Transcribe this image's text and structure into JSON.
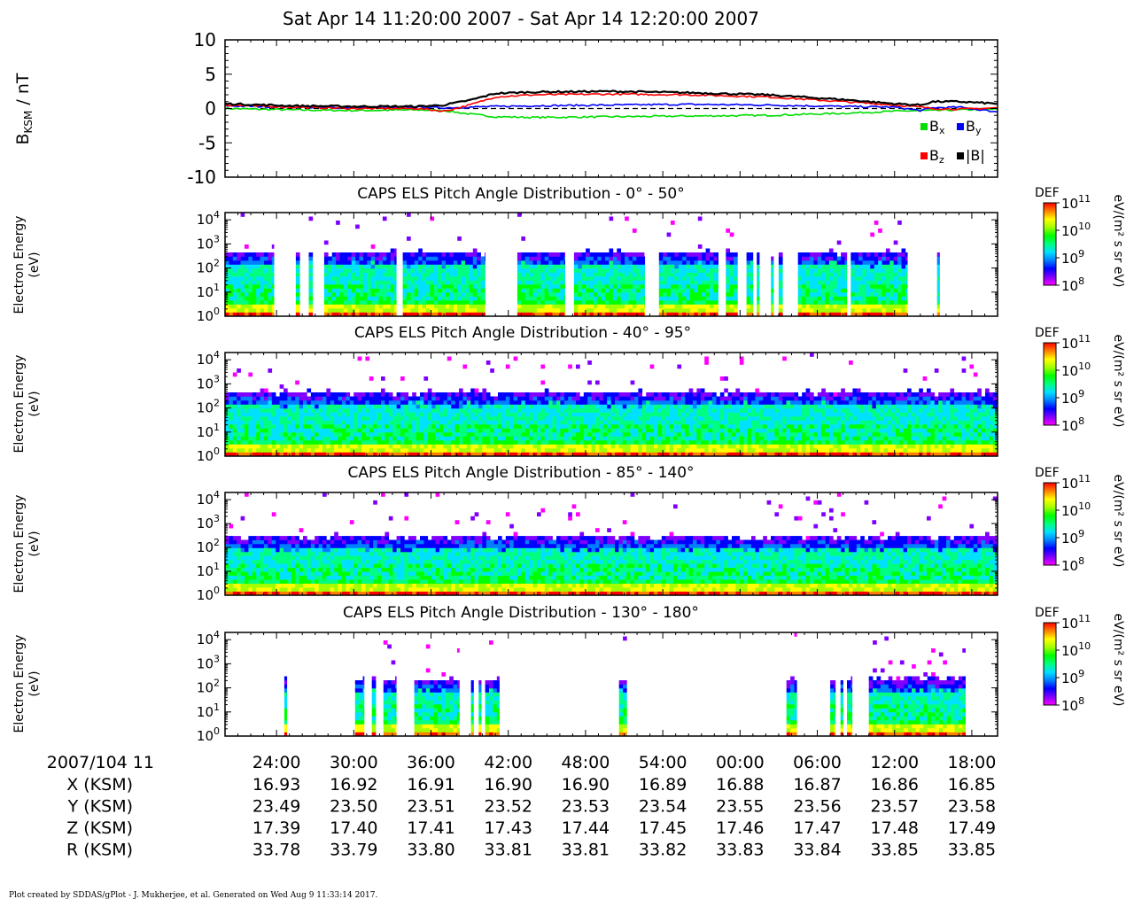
{
  "header": {
    "title": "Sat Apr 14 11:20:00 2007 - Sat Apr 14 12:20:00 2007"
  },
  "footer": {
    "text": "Plot created by SDDAS/gPlot - J. Mukherjee, et al.  Generated on Wed Aug 9 11:33:14 2017."
  },
  "colors": {
    "bx": "#00dd00",
    "by": "#0000ff",
    "bz": "#ff0000",
    "bmag": "#000000",
    "colorbar": [
      "#ff00ff",
      "#8000ff",
      "#0000ff",
      "#0080ff",
      "#00e0ff",
      "#00ff80",
      "#00ff00",
      "#a0ff00",
      "#ffff00",
      "#ff8000",
      "#ff0000"
    ]
  },
  "time_axis": {
    "date_label": "2007/104 11",
    "tick_labels": [
      "24:00",
      "30:00",
      "36:00",
      "42:00",
      "48:00",
      "54:00",
      "00:00",
      "06:00",
      "12:00",
      "18:00"
    ],
    "ephemeris": [
      {
        "label": "X (KSM)",
        "values": [
          "16.93",
          "16.92",
          "16.91",
          "16.90",
          "16.90",
          "16.89",
          "16.88",
          "16.87",
          "16.86",
          "16.85"
        ]
      },
      {
        "label": "Y (KSM)",
        "values": [
          "23.49",
          "23.50",
          "23.51",
          "23.52",
          "23.53",
          "23.54",
          "23.55",
          "23.56",
          "23.57",
          "23.58"
        ]
      },
      {
        "label": "Z (KSM)",
        "values": [
          "17.39",
          "17.40",
          "17.41",
          "17.43",
          "17.44",
          "17.45",
          "17.46",
          "17.47",
          "17.48",
          "17.49"
        ]
      },
      {
        "label": "R (KSM)",
        "values": [
          "33.78",
          "33.79",
          "33.80",
          "33.81",
          "33.81",
          "33.82",
          "33.83",
          "33.84",
          "33.85",
          "33.85"
        ]
      }
    ]
  },
  "chart_data": [
    {
      "type": "line",
      "ylabel": "B",
      "ylabel_sub": "KSM",
      "ylabel_unit": " / nT",
      "ylim": [
        -10,
        10
      ],
      "y_tick_labels": [
        "10",
        "5",
        "0",
        "-5",
        "-10"
      ],
      "x_minutes": [
        0,
        5,
        10,
        15,
        17,
        19,
        21,
        24,
        30,
        36,
        42,
        48,
        52,
        54,
        55,
        57,
        60
      ],
      "legend": {
        "placement": "bottom-right",
        "items": [
          "Bx",
          "By",
          "Bz",
          "|B|"
        ]
      },
      "series": [
        {
          "name": "Bx",
          "values": [
            0.0,
            -0.2,
            -0.3,
            -0.2,
            -0.3,
            -0.8,
            -1.2,
            -1.3,
            -1.2,
            -1.1,
            -1.0,
            -0.7,
            -0.4,
            -0.3,
            -0.3,
            -0.2,
            -0.1
          ]
        },
        {
          "name": "By",
          "values": [
            0.4,
            0.2,
            0.1,
            0.2,
            0.1,
            0.2,
            0.3,
            0.4,
            0.5,
            0.6,
            0.5,
            0.3,
            0.2,
            -0.3,
            0.1,
            0.2,
            -0.5
          ]
        },
        {
          "name": "Bz",
          "values": [
            0.5,
            0.2,
            0.0,
            0.0,
            -0.4,
            0.5,
            1.7,
            2.0,
            2.1,
            2.0,
            1.7,
            1.0,
            0.5,
            0.2,
            0.0,
            -0.1,
            0.1
          ]
        },
        {
          "name": "|B|",
          "values": [
            0.7,
            0.4,
            0.3,
            0.3,
            0.5,
            1.2,
            2.2,
            2.4,
            2.5,
            2.3,
            2.0,
            1.3,
            0.7,
            0.5,
            1.0,
            1.0,
            0.7
          ]
        }
      ]
    },
    {
      "type": "heatmap",
      "title": "CAPS ELS Pitch Angle Distribution - 0° - 50°",
      "ylabel": [
        "Electron Energy",
        "(eV)"
      ],
      "ylim_log10": [
        0,
        4.3
      ],
      "colorbar": {
        "title": "DEF",
        "unit": "eV/(m² s sr eV)",
        "log10_range": [
          8,
          11
        ]
      },
      "upper_energy_log10": 2.5,
      "data_intervals_minutes": [
        [
          0,
          3.8
        ],
        [
          5.5,
          5.8
        ],
        [
          6.5,
          6.8
        ],
        [
          7.7,
          13.3
        ],
        [
          13.8,
          20.2
        ],
        [
          22.7,
          26.4
        ],
        [
          27.1,
          32.6
        ],
        [
          33.7,
          38.3
        ],
        [
          38.9,
          39.8
        ],
        [
          40.5,
          41.0
        ],
        [
          41.3,
          41.5
        ],
        [
          42.4,
          42.6
        ],
        [
          43.0,
          43.3
        ],
        [
          44.5,
          48.3
        ],
        [
          48.6,
          53.0
        ],
        [
          55.3,
          55.5
        ]
      ]
    },
    {
      "type": "heatmap",
      "title": "CAPS ELS Pitch Angle Distribution - 40° - 95°",
      "ylabel": [
        "Electron Energy",
        "(eV)"
      ],
      "ylim_log10": [
        0,
        4.3
      ],
      "colorbar": {
        "title": "DEF",
        "unit": "eV/(m² s sr eV)",
        "log10_range": [
          8,
          11
        ]
      },
      "upper_energy_log10": 2.5,
      "data_intervals_minutes": [
        [
          0,
          60
        ]
      ]
    },
    {
      "type": "heatmap",
      "title": "CAPS ELS Pitch Angle Distribution - 85° - 140°",
      "ylabel": [
        "Electron Energy",
        "(eV)"
      ],
      "ylim_log10": [
        0,
        4.3
      ],
      "colorbar": {
        "title": "DEF",
        "unit": "eV/(m² s sr eV)",
        "log10_range": [
          8,
          11
        ]
      },
      "upper_energy_log10": 2.3,
      "data_intervals_minutes": [
        [
          0,
          60
        ]
      ]
    },
    {
      "type": "heatmap",
      "title": "CAPS ELS Pitch Angle Distribution - 130° - 180°",
      "ylabel": [
        "Electron Energy",
        "(eV)"
      ],
      "ylim_log10": [
        0,
        4.3
      ],
      "colorbar": {
        "title": "DEF",
        "unit": "eV/(m² s sr eV)",
        "log10_range": [
          8,
          11
        ]
      },
      "upper_energy_log10": 2.2,
      "data_intervals_minutes": [
        [
          4.6,
          4.8
        ],
        [
          10.1,
          10.8
        ],
        [
          11.4,
          11.7
        ],
        [
          12.3,
          13.3
        ],
        [
          14.7,
          18.2
        ],
        [
          19.1,
          19.3
        ],
        [
          19.7,
          19.9
        ],
        [
          20.2,
          21.3
        ],
        [
          30.6,
          31.2
        ],
        [
          43.6,
          44.4
        ],
        [
          47.0,
          47.4
        ],
        [
          47.8,
          48.0
        ],
        [
          48.3,
          48.7
        ],
        [
          50.0,
          57.5
        ]
      ]
    }
  ]
}
